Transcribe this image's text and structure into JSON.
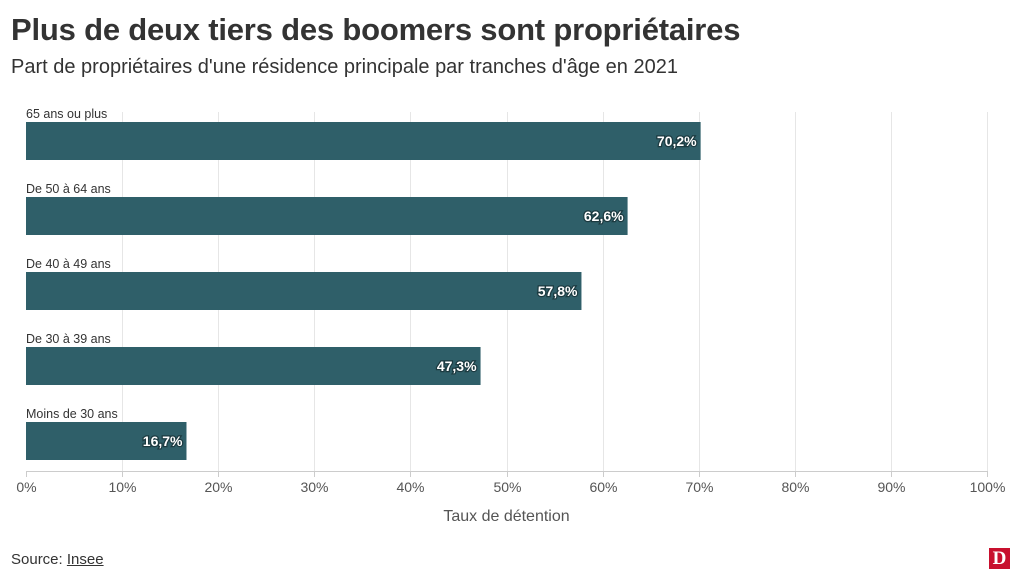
{
  "title": "Plus de deux tiers des boomers sont propriétaires",
  "subtitle": "Part de propriétaires d'une résidence principale par tranches d'âge en 2021",
  "source": {
    "prefix": "Source: ",
    "link_text": "Insee"
  },
  "logo": {
    "letter": "D"
  },
  "colors": {
    "bar": "#2f5f69",
    "text": "#333333",
    "logo": "#c8102e",
    "grid": "#e6e6e6"
  },
  "chart_data": {
    "type": "bar",
    "orientation": "horizontal",
    "categories": [
      "65 ans ou plus",
      "De 50 à 64 ans",
      "De 40 à 49 ans",
      "De 30 à 39 ans",
      "Moins de 30 ans"
    ],
    "values": [
      70.2,
      62.6,
      57.8,
      47.3,
      16.7
    ],
    "data_labels": [
      "70,2%",
      "62,6%",
      "57,8%",
      "47,3%",
      "16,7%"
    ],
    "xlabel": "Taux de détention",
    "ylabel": "",
    "xlim": [
      0,
      100
    ],
    "x_ticks": [
      0,
      10,
      20,
      30,
      40,
      50,
      60,
      70,
      80,
      90,
      100
    ],
    "x_tick_labels": [
      "0%",
      "10%",
      "20%",
      "30%",
      "40%",
      "50%",
      "60%",
      "70%",
      "80%",
      "90%",
      "100%"
    ],
    "grid": true,
    "legend": "none"
  }
}
